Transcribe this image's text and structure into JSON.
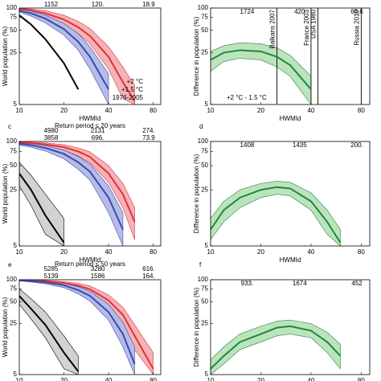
{
  "chart_data": [
    {
      "type": "line",
      "xlabel": "HWMId",
      "ylabel": "World population (%)",
      "xlim": [
        10,
        90
      ],
      "xticks": [
        10,
        20,
        40,
        80
      ],
      "ylim": [
        5,
        100
      ],
      "yticks": [
        5,
        25,
        50,
        75,
        100
      ],
      "log_x": true,
      "log_y": true,
      "legend": "lower right",
      "annotations": [
        {
          "color": "#3b48b0",
          "texts": [
            "1152",
            "120.",
            "18.9"
          ]
        }
      ],
      "x": [
        10,
        12,
        15,
        20,
        25,
        30,
        40,
        50,
        60,
        80
      ],
      "series": [
        {
          "name": "+2 °C",
          "color": "#e0303a",
          "band_color": "#f4b3b6",
          "values": [
            97,
            93,
            85,
            70,
            55,
            42,
            22,
            10,
            5.5,
            null
          ],
          "upper": [
            99,
            97,
            92,
            80,
            66,
            53,
            30,
            16,
            9,
            null
          ],
          "lower": [
            94,
            88,
            77,
            60,
            45,
            33,
            15,
            6,
            5,
            null
          ]
        },
        {
          "name": "+1.5 °C",
          "color": "#3b48b0",
          "band_color": "#b5bde6",
          "values": [
            92,
            85,
            72,
            52,
            35,
            22,
            8,
            null,
            null,
            null
          ],
          "upper": [
            96,
            91,
            80,
            62,
            45,
            30,
            13,
            null,
            null,
            null
          ],
          "lower": [
            88,
            78,
            63,
            43,
            27,
            15,
            5,
            null,
            null,
            null
          ]
        },
        {
          "name": "1976-2005",
          "color": "#000000",
          "values": [
            80,
            60,
            38,
            18,
            8,
            null,
            null,
            null,
            null,
            null
          ]
        }
      ]
    },
    {
      "type": "line",
      "xlabel": "HWMId",
      "ylabel": "Difference in population (%)",
      "xlim": [
        10,
        90
      ],
      "xticks": [
        10,
        20,
        40,
        80
      ],
      "ylim": [
        5,
        100
      ],
      "yticks": [
        5,
        25,
        50,
        75,
        100
      ],
      "log_x": true,
      "log_y": true,
      "legend": "lower left",
      "annotations": [
        {
          "color": "#1a8a3a",
          "texts": [
            "1724",
            "420",
            "65.6"
          ]
        }
      ],
      "events": [
        {
          "label": "Balkans 2007",
          "x": 25
        },
        {
          "label": "France 2003",
          "x": 40
        },
        {
          "label": "USA 1980",
          "x": 44
        },
        {
          "label": "Russia 2010",
          "x": 80
        }
      ],
      "x": [
        10,
        12,
        15,
        20,
        25,
        30,
        40,
        50,
        60,
        80
      ],
      "series": [
        {
          "name": "+2 °C - 1.5 °C",
          "color": "#1a8a3a",
          "band_color": "#bde3be",
          "values": [
            20,
            25,
            27,
            26,
            22,
            17,
            8,
            null,
            null,
            null
          ],
          "upper": [
            26,
            31,
            34,
            33,
            29,
            23,
            12,
            null,
            null,
            null
          ],
          "lower": [
            14,
            19,
            21,
            20,
            16,
            12,
            5,
            null,
            null,
            null
          ]
        }
      ]
    },
    {
      "type": "line",
      "panel": "c",
      "subtitle": "Return period ≤  20 years",
      "xlabel": "HWMId",
      "ylabel": "World population (%)",
      "xlim": [
        10,
        90
      ],
      "xticks": [
        10,
        20,
        40,
        80
      ],
      "ylim": [
        5,
        100
      ],
      "yticks": [
        5,
        25,
        50,
        75,
        100
      ],
      "log_x": true,
      "log_y": true,
      "annotations": [
        {
          "color": "#e0303a",
          "texts": [
            "4980",
            "2131",
            "274."
          ]
        },
        {
          "color": "#3b48b0",
          "texts": [
            "3858",
            "696.",
            "73.9"
          ]
        }
      ],
      "x": [
        10,
        12,
        15,
        20,
        25,
        30,
        40,
        50,
        60,
        80
      ],
      "series": [
        {
          "color": "#e0303a",
          "band_color": "#f4b3b6",
          "values": [
            97,
            95,
            92,
            85,
            75,
            64,
            40,
            22,
            10,
            null
          ],
          "upper": [
            99,
            98,
            96,
            91,
            83,
            74,
            50,
            30,
            15,
            null
          ],
          "lower": [
            95,
            92,
            87,
            78,
            66,
            54,
            31,
            15,
            6,
            null
          ]
        },
        {
          "color": "#3b48b0",
          "band_color": "#b5bde6",
          "values": [
            94,
            90,
            83,
            70,
            55,
            42,
            20,
            8,
            null,
            null
          ],
          "upper": [
            97,
            94,
            89,
            78,
            65,
            52,
            28,
            13,
            null,
            null
          ],
          "lower": [
            90,
            85,
            76,
            61,
            45,
            33,
            13,
            5,
            null,
            null
          ]
        },
        {
          "color": "#000000",
          "band_color": "#d2d2d2",
          "values": [
            40,
            25,
            12,
            5.5,
            null,
            null,
            null,
            null,
            null,
            null
          ],
          "upper": [
            55,
            38,
            22,
            11,
            null,
            null,
            null,
            null,
            null,
            null
          ],
          "lower": [
            28,
            16,
            7,
            5,
            null,
            null,
            null,
            null,
            null,
            null
          ]
        }
      ]
    },
    {
      "type": "line",
      "panel": "d",
      "xlabel": "HWMId",
      "ylabel": "Difference in population (%)",
      "xlim": [
        10,
        90
      ],
      "xticks": [
        10,
        20,
        40,
        80
      ],
      "ylim": [
        5,
        100
      ],
      "yticks": [
        5,
        25,
        50,
        75,
        100
      ],
      "log_x": true,
      "log_y": true,
      "annotations": [
        {
          "color": "#1a8a3a",
          "texts": [
            "1408",
            "1435",
            "200."
          ]
        }
      ],
      "x": [
        10,
        12,
        15,
        20,
        25,
        30,
        40,
        50,
        60,
        80
      ],
      "series": [
        {
          "color": "#1a8a3a",
          "band_color": "#bde3be",
          "values": [
            8,
            14,
            20,
            25,
            27,
            26,
            18,
            10,
            5.5,
            null
          ],
          "upper": [
            11,
            18,
            25,
            30,
            32,
            31,
            23,
            14,
            8,
            null
          ],
          "lower": [
            6,
            10,
            15,
            20,
            22,
            21,
            14,
            7,
            5,
            null
          ]
        }
      ]
    },
    {
      "type": "line",
      "panel": "e",
      "subtitle": "Return period ≤  50 years",
      "xlabel": "HWMId",
      "ylabel": "World population (%)",
      "xlim": [
        10,
        90
      ],
      "xticks": [
        10,
        20,
        40,
        80
      ],
      "ylim": [
        5,
        100
      ],
      "yticks": [
        5,
        25,
        50,
        75,
        100
      ],
      "log_x": true,
      "log_y": true,
      "annotations": [
        {
          "color": "#e0303a",
          "texts": [
            "5285",
            "3280",
            "616."
          ]
        },
        {
          "color": "#3b48b0",
          "texts": [
            "5139",
            "1586",
            "164."
          ]
        }
      ],
      "x": [
        10,
        12,
        15,
        20,
        25,
        30,
        40,
        50,
        60,
        80
      ],
      "series": [
        {
          "color": "#e0303a",
          "band_color": "#f4b3b6",
          "values": [
            99,
            97,
            95,
            90,
            83,
            74,
            52,
            33,
            17,
            6
          ],
          "upper": [
            100,
            99,
            98,
            94,
            89,
            82,
            62,
            42,
            24,
            10
          ],
          "lower": [
            97,
            95,
            91,
            85,
            76,
            66,
            43,
            25,
            11,
            5
          ]
        },
        {
          "color": "#3b48b0",
          "band_color": "#b5bde6",
          "values": [
            98,
            96,
            92,
            84,
            72,
            60,
            36,
            18,
            7,
            null
          ],
          "upper": [
            99,
            98,
            95,
            89,
            80,
            69,
            46,
            26,
            12,
            null
          ],
          "lower": [
            96,
            93,
            88,
            78,
            64,
            51,
            28,
            12,
            5,
            null
          ]
        },
        {
          "color": "#000000",
          "band_color": "#d2d2d2",
          "values": [
            60,
            40,
            24,
            10,
            5.5,
            null,
            null,
            null,
            null,
            null
          ],
          "upper": [
            75,
            55,
            36,
            17,
            9,
            null,
            null,
            null,
            null,
            null
          ],
          "lower": [
            46,
            29,
            16,
            6,
            5,
            null,
            null,
            null,
            null,
            null
          ]
        }
      ]
    },
    {
      "type": "line",
      "panel": "f",
      "xlabel": "HWMId",
      "ylabel": "Difference in population (%)",
      "xlim": [
        10,
        90
      ],
      "xticks": [
        10,
        20,
        40,
        80
      ],
      "ylim": [
        5,
        100
      ],
      "yticks": [
        5,
        25,
        50,
        75,
        100
      ],
      "log_x": true,
      "log_y": true,
      "annotations": [
        {
          "color": "#1a8a3a",
          "texts": [
            "933.",
            "1674",
            "452"
          ]
        }
      ],
      "x": [
        10,
        12,
        15,
        20,
        25,
        30,
        40,
        50,
        60,
        80
      ],
      "series": [
        {
          "color": "#1a8a3a",
          "band_color": "#bde3be",
          "values": [
            6,
            9,
            14,
            18,
            22,
            23,
            20,
            14,
            9,
            null
          ],
          "upper": [
            8,
            12,
            18,
            23,
            27,
            28,
            25,
            19,
            13,
            null
          ],
          "lower": [
            5,
            7,
            11,
            14,
            17,
            18,
            16,
            10,
            6,
            null
          ]
        }
      ]
    }
  ]
}
